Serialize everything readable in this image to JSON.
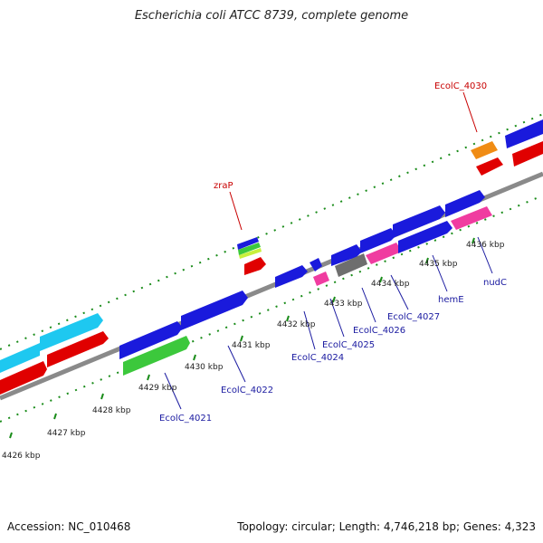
{
  "title": "Escherichia coli ATCC 8739, complete genome",
  "footer": {
    "accession_label": "Accession:",
    "accession": "NC_010468",
    "topology_label": "Topology:",
    "topology": "circular;",
    "length_label": "Length:",
    "length": "4,746,218 bp;",
    "genes_label": "Genes:",
    "genes": "4,323"
  },
  "colors": {
    "backbone": "#888888",
    "blue": "#1a1adc",
    "red": "#e00000",
    "cyan": "#1ec8f0",
    "green": "#3cc83c",
    "magenta": "#f03ca0",
    "orange": "#f08c14",
    "gray": "#6e6e6e",
    "tick": "#1a8c1a",
    "label_blue": "#1a1aa0",
    "label_red": "#c80000"
  },
  "kbp_ticks": [
    "4426 kbp",
    "4427 kbp",
    "4428 kbp",
    "4429 kbp",
    "4430 kbp",
    "4431 kbp",
    "4432 kbp",
    "4433 kbp",
    "4434 kbp",
    "4435 kbp",
    "4436 kbp"
  ],
  "gene_labels": [
    {
      "name": "zraP",
      "color": "red"
    },
    {
      "name": "EcolC_4030",
      "color": "red"
    },
    {
      "name": "EcolC_4021",
      "color": "blue"
    },
    {
      "name": "EcolC_4022",
      "color": "blue"
    },
    {
      "name": "EcolC_4024",
      "color": "blue"
    },
    {
      "name": "EcolC_4025",
      "color": "blue"
    },
    {
      "name": "EcolC_4026",
      "color": "blue"
    },
    {
      "name": "EcolC_4027",
      "color": "blue"
    },
    {
      "name": "hemE",
      "color": "blue"
    },
    {
      "name": "nudC",
      "color": "blue"
    }
  ]
}
